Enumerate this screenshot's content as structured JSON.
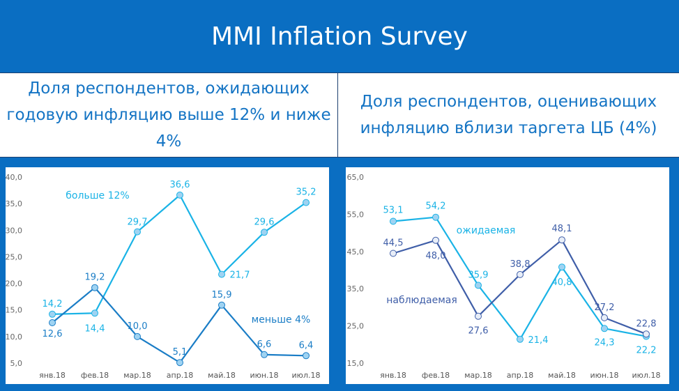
{
  "title": "MMI Inflation Survey",
  "left_header": "Доля респондентов, ожидающих годовую инфляцию выше 12% и ниже 4%",
  "right_header": "Доля респондентов, оценивающих инфляцию вблизи таргета ЦБ (4%)",
  "chart_data": [
    {
      "type": "line",
      "categories": [
        "янв.18",
        "фев.18",
        "мар.18",
        "апр.18",
        "май.18",
        "июн.18",
        "июл.18"
      ],
      "ylim": [
        5,
        40
      ],
      "yticks": [
        "40,0",
        "35,0",
        "30,0",
        "25,0",
        "20,0",
        "15,0",
        "10,0",
        "5,0"
      ],
      "grid": false,
      "series": [
        {
          "name": "больше 12%",
          "color": "#1ab3e6",
          "values": [
            14.2,
            14.4,
            29.7,
            36.6,
            21.7,
            29.6,
            35.2
          ],
          "labels": [
            "14,2",
            "14,4",
            "29,7",
            "36,6",
            "21,7",
            "29,6",
            "35,2"
          ]
        },
        {
          "name": "меньше 4%",
          "color": "#1a7dc6",
          "values": [
            12.6,
            19.2,
            10.0,
            5.1,
            15.9,
            6.6,
            6.4
          ],
          "labels": [
            "12,6",
            "19,2",
            "10,0",
            "5,1",
            "15,9",
            "6,6",
            "6,4"
          ]
        }
      ]
    },
    {
      "type": "line",
      "categories": [
        "янв.18",
        "фев.18",
        "мар.18",
        "апр.18",
        "май.18",
        "июн.18",
        "июл.18"
      ],
      "ylim": [
        15,
        65
      ],
      "yticks": [
        "65,0",
        "55,0",
        "45,0",
        "35,0",
        "25,0",
        "15,0"
      ],
      "grid": false,
      "series": [
        {
          "name": "ожидаемая",
          "color": "#1ab3e6",
          "values": [
            53.1,
            54.2,
            35.9,
            21.4,
            40.8,
            24.3,
            22.2
          ],
          "labels": [
            "53,1",
            "54,2",
            "35,9",
            "21,4",
            "40,8",
            "24,3",
            "22,2"
          ]
        },
        {
          "name": "наблюдаемая",
          "color": "#3f5ea8",
          "values": [
            44.5,
            48.0,
            27.6,
            38.8,
            48.1,
            27.2,
            22.8
          ],
          "labels": [
            "44,5",
            "48,0",
            "27,6",
            "38,8",
            "48,1",
            "27,2",
            "22,8"
          ]
        }
      ]
    }
  ]
}
